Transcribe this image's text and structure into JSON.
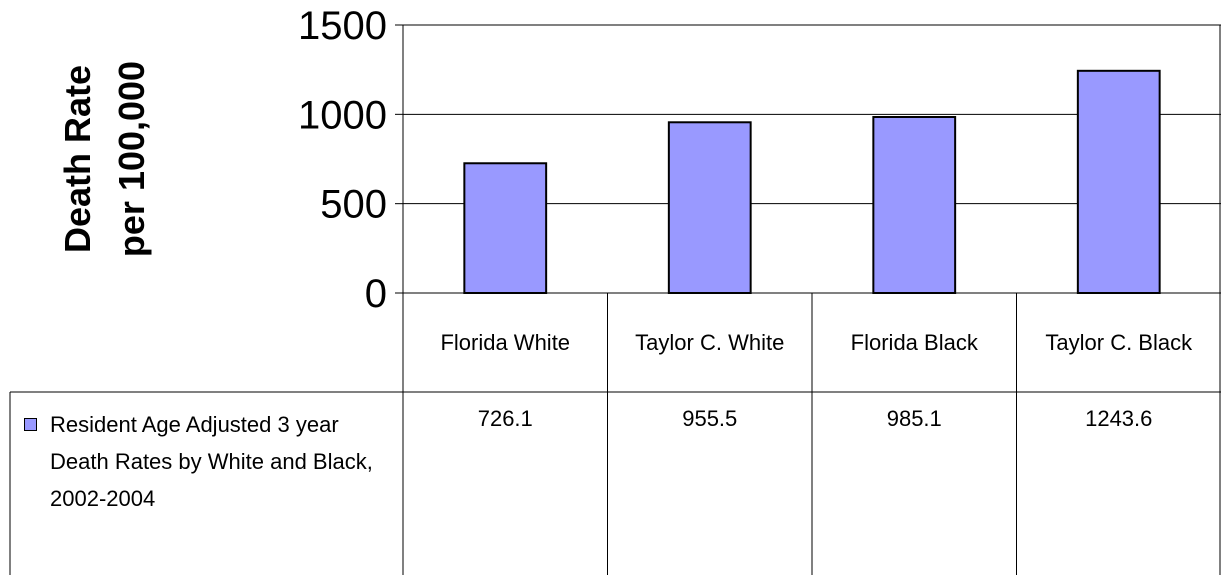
{
  "chart_data": {
    "type": "bar",
    "ylabel": [
      "Death Rate",
      "per 100,000"
    ],
    "categories": [
      "Florida White",
      "Taylor C. White",
      "Florida Black",
      "Taylor C. Black"
    ],
    "series": [
      {
        "name": "Resident Age Adjusted 3 year Death Rates by White and Black, 2002-2004",
        "color": "#9999ff",
        "values": [
          726.1,
          955.5,
          985.1,
          1243.6
        ]
      }
    ],
    "ylim": [
      0,
      1500
    ],
    "yticks": [
      0,
      500,
      1000,
      1500
    ],
    "grid": true
  }
}
